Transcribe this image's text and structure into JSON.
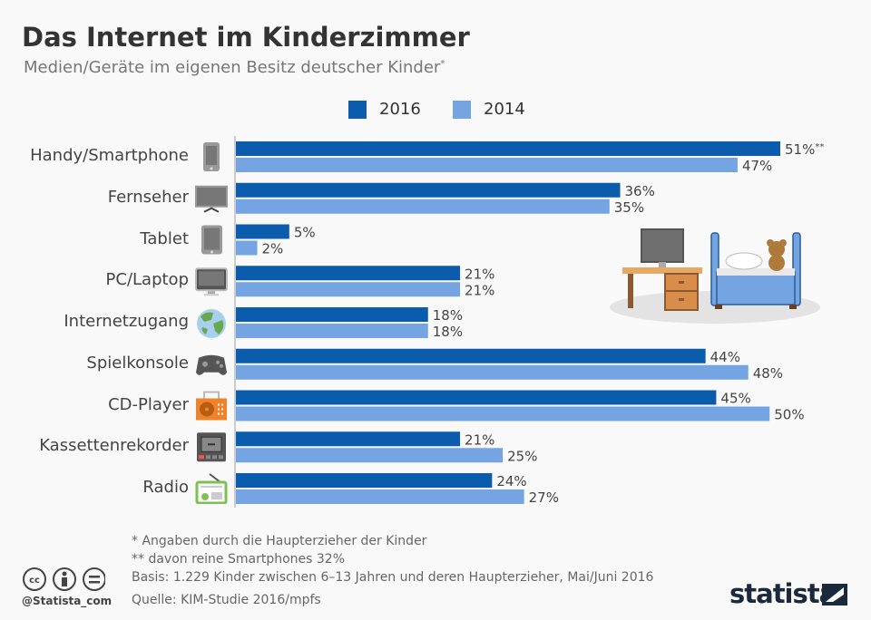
{
  "title": "Das Internet im Kinderzimmer",
  "subtitle": "Medien/Geräte im eigenen Besitz deutscher Kinder",
  "subtitle_mark": "*",
  "colors": {
    "2016": "#0b5cad",
    "2014": "#74a5e2"
  },
  "chart_data": {
    "type": "bar",
    "orientation": "horizontal",
    "categories": [
      "Handy/Smartphone",
      "Fernseher",
      "Tablet",
      "PC/Laptop",
      "Internetzugang",
      "Spielkonsole",
      "CD-Player",
      "Kassettenrekorder",
      "Radio"
    ],
    "icons": [
      "smartphone-icon",
      "tv-icon",
      "tablet-icon",
      "monitor-icon",
      "globe-icon",
      "gamepad-icon",
      "cd-player-icon",
      "cassette-recorder-icon",
      "radio-icon"
    ],
    "series": [
      {
        "name": "2016",
        "values": [
          51,
          36,
          5,
          21,
          18,
          44,
          45,
          21,
          24
        ]
      },
      {
        "name": "2014",
        "values": [
          47,
          35,
          2,
          21,
          18,
          48,
          50,
          25,
          27
        ]
      }
    ],
    "value_suffix": "%",
    "annotations": {
      "0-0": "**"
    },
    "legend": "top",
    "xlim": [
      0,
      51
    ]
  },
  "footnotes": [
    "*   Angaben durch die Haupterzieher der Kinder",
    "** davon reine Smartphones 32%",
    "Basis: 1.229 Kinder zwischen 6–13 Jahren und deren Haupterzieher, Mai/Juni 2016",
    "Quelle: KIM-Studie 2016/mpfs"
  ],
  "handle": "@Statista_com",
  "brand": "statista"
}
